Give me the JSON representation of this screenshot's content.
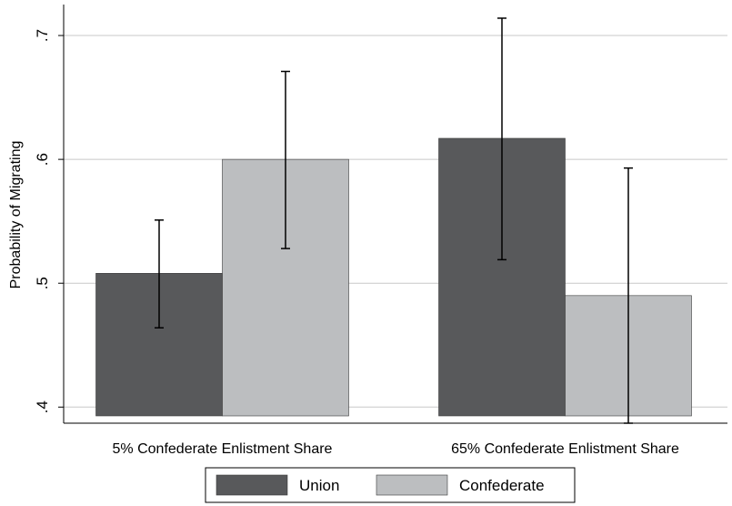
{
  "chart_data": {
    "type": "bar",
    "title": "",
    "xlabel": "",
    "ylabel": "Probability of Migrating",
    "categories": [
      "5% Confederate Enlistment Share",
      "65% Confederate Enlistment Share"
    ],
    "ylim": [
      0.387,
      0.725
    ],
    "yticks": [
      0.4,
      0.5,
      0.6,
      0.7
    ],
    "ytick_labels": [
      ".4",
      ".5",
      ".6",
      ".7"
    ],
    "grid": true,
    "legend_position": "bottom-center",
    "series": [
      {
        "name": "Union",
        "color": "#58595b",
        "values": [
          0.508,
          0.617
        ],
        "ci_low": [
          0.464,
          0.519
        ],
        "ci_high": [
          0.551,
          0.714
        ]
      },
      {
        "name": "Confederate",
        "color": "#bcbec0",
        "values": [
          0.6,
          0.49
        ],
        "ci_low": [
          0.528,
          0.387
        ],
        "ci_high": [
          0.671,
          0.593
        ]
      }
    ]
  }
}
